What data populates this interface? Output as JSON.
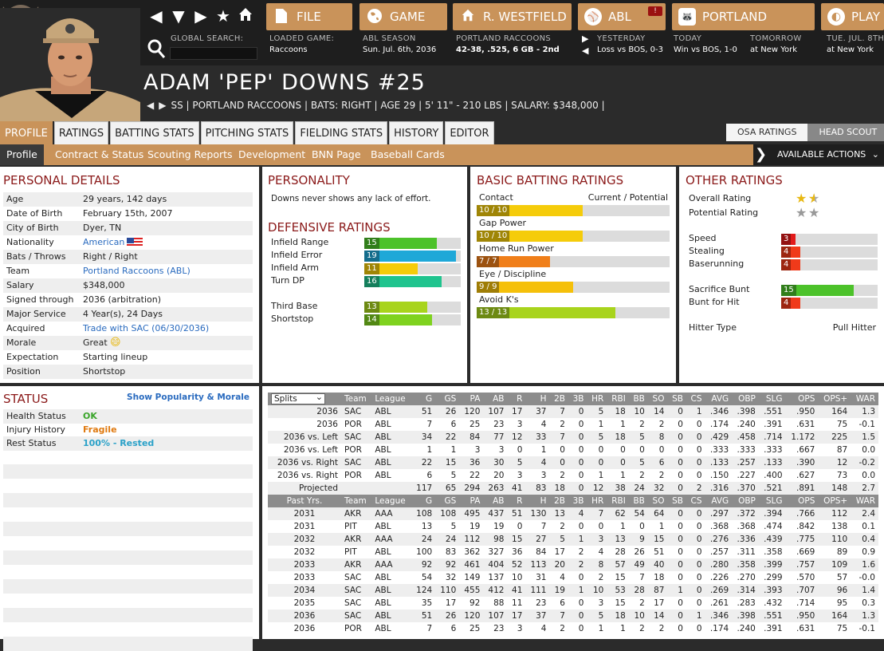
{
  "top": {
    "search_label": "GLOBAL SEARCH:",
    "buttons": {
      "file": "FILE",
      "game": "GAME",
      "team": "R. WESTFIELD",
      "league": "ABL",
      "portland": "PORTLAND",
      "play": "PLAY",
      "alert": "!"
    },
    "info": [
      {
        "label": "LOADED GAME:",
        "value": "Raccoons"
      },
      {
        "label": "ABL SEASON",
        "value": "Sun. Jul. 6th, 2036"
      },
      {
        "label": "PORTLAND RACCOONS",
        "value": "42-38, .525, 6 GB - 2nd"
      },
      {
        "label": "YESTERDAY",
        "value": "Loss vs BOS, 0-3"
      },
      {
        "label": "TODAY",
        "value": "Win vs BOS, 1-0"
      },
      {
        "label": "TOMORROW",
        "value": "at New York"
      },
      {
        "label": "TUE. JUL. 8TH",
        "value": "at New York"
      }
    ]
  },
  "player": {
    "name": "ADAM 'PEP' DOWNS  #25",
    "info": "SS | PORTLAND RACCOONS | BATS: RIGHT | AGE 29 | 5' 11\" - 210 LBS | SALARY: $348,000 |"
  },
  "tabs": [
    "PROFILE",
    "RATINGS",
    "BATTING STATS",
    "PITCHING STATS",
    "FIELDING STATS",
    "HISTORY",
    "EDITOR"
  ],
  "rating_toggle": [
    "OSA RATINGS",
    "HEAD SCOUT"
  ],
  "subtabs": [
    "Profile",
    "Contract & Status",
    "Scouting Reports",
    "Development",
    "BNN Page",
    "Baseball Cards"
  ],
  "actions_label": "AVAILABLE ACTIONS",
  "personal": {
    "title": "PERSONAL DETAILS",
    "rows": [
      {
        "k": "Age",
        "v": "29 years, 142 days"
      },
      {
        "k": "Date of Birth",
        "v": "February 15th, 2007"
      },
      {
        "k": "City of Birth",
        "v": "Dyer, TN"
      },
      {
        "k": "Nationality",
        "v": "American"
      },
      {
        "k": "Bats / Throws",
        "v": "Right / Right"
      },
      {
        "k": "Team",
        "v": "Portland Raccoons (ABL)"
      },
      {
        "k": "Salary",
        "v": "$348,000"
      },
      {
        "k": "Signed through",
        "v": "2036 (arbitration)"
      },
      {
        "k": "Major Service",
        "v": "4 Year(s), 24 Days"
      },
      {
        "k": "Acquired",
        "v": "Trade with SAC (06/30/2036)"
      },
      {
        "k": "Morale",
        "v": "Great"
      },
      {
        "k": "Expectation",
        "v": "Starting lineup"
      },
      {
        "k": "Position",
        "v": "Shortstop"
      }
    ]
  },
  "personality": {
    "title": "PERSONALITY",
    "text": "Downs never shows any lack of effort."
  },
  "defensive": {
    "title": "DEFENSIVE RATINGS",
    "items": [
      {
        "name": "Infield Range",
        "value": 15,
        "color": "#4cc22a"
      },
      {
        "name": "Infield Error",
        "value": 19,
        "color": "#1fa8d8"
      },
      {
        "name": "Infield Arm",
        "value": 11,
        "color": "#f5cc0a"
      },
      {
        "name": "Turn DP",
        "value": 16,
        "color": "#1fc48e"
      },
      {
        "name": "Third Base",
        "value": 13,
        "color": "#a8d41c"
      },
      {
        "name": "Shortstop",
        "value": 14,
        "color": "#7fd21f"
      }
    ]
  },
  "batting": {
    "title": "BASIC BATTING RATINGS",
    "col_header": "Current / Potential",
    "items": [
      {
        "name": "Contact",
        "value": "10 / 10",
        "fill": 0.55,
        "color": "#f5cc0a"
      },
      {
        "name": "Gap Power",
        "value": "10 / 10",
        "fill": 0.55,
        "color": "#f5cc0a"
      },
      {
        "name": "Home Run Power",
        "value": "7 / 7",
        "fill": 0.38,
        "color": "#f07f1a"
      },
      {
        "name": "Eye / Discipline",
        "value": "9 / 9",
        "fill": 0.5,
        "color": "#f5c00a"
      },
      {
        "name": "Avoid K's",
        "value": "13 / 13",
        "fill": 0.72,
        "color": "#a8d41c"
      }
    ]
  },
  "other": {
    "title": "OTHER RATINGS",
    "overall_label": "Overall Rating",
    "overall_stars": 1.5,
    "potential_label": "Potential Rating",
    "potential_stars": 2,
    "items": [
      {
        "name": "Speed",
        "value": 3,
        "color": "#e21b1b"
      },
      {
        "name": "Stealing",
        "value": 4,
        "color": "#f03a1a"
      },
      {
        "name": "Baserunning",
        "value": 4,
        "color": "#f03a1a"
      },
      {
        "name": "Sacrifice Bunt",
        "value": 15,
        "color": "#4cc22a"
      },
      {
        "name": "Bunt for Hit",
        "value": 4,
        "color": "#f03a1a"
      }
    ],
    "hitter_label": "Hitter Type",
    "hitter_value": "Pull Hitter"
  },
  "status": {
    "title": "STATUS",
    "link": "Show Popularity & Morale",
    "rows": [
      {
        "k": "Health Status",
        "v": "OK",
        "color": "#3aa52a"
      },
      {
        "k": "Injury History",
        "v": "Fragile",
        "color": "#e07a10"
      },
      {
        "k": "Rest Status",
        "v": "100% - Rested",
        "color": "#2aa1c8"
      }
    ]
  },
  "splits": {
    "select_value": "Splits",
    "headers": [
      "Team",
      "League",
      "G",
      "GS",
      "PA",
      "AB",
      "R",
      "H",
      "2B",
      "3B",
      "HR",
      "RBI",
      "BB",
      "SO",
      "SB",
      "CS",
      "AVG",
      "OBP",
      "SLG",
      "OPS",
      "OPS+",
      "WAR"
    ],
    "rows": [
      [
        "2036",
        "SAC",
        "ABL",
        "51",
        "26",
        "120",
        "107",
        "17",
        "37",
        "7",
        "0",
        "5",
        "18",
        "10",
        "14",
        "0",
        "1",
        ".346",
        ".398",
        ".551",
        ".950",
        "164",
        "1.3"
      ],
      [
        "2036",
        "POR",
        "ABL",
        "7",
        "6",
        "25",
        "23",
        "3",
        "4",
        "2",
        "0",
        "1",
        "1",
        "2",
        "2",
        "0",
        "0",
        ".174",
        ".240",
        ".391",
        ".631",
        "75",
        "-0.1"
      ],
      [
        "2036 vs. Left",
        "SAC",
        "ABL",
        "34",
        "22",
        "84",
        "77",
        "12",
        "33",
        "7",
        "0",
        "5",
        "18",
        "5",
        "8",
        "0",
        "0",
        ".429",
        ".458",
        ".714",
        "1.172",
        "225",
        "1.5"
      ],
      [
        "2036 vs. Left",
        "POR",
        "ABL",
        "1",
        "1",
        "3",
        "3",
        "0",
        "1",
        "0",
        "0",
        "0",
        "0",
        "0",
        "0",
        "0",
        "0",
        ".333",
        ".333",
        ".333",
        ".667",
        "87",
        "0.0"
      ],
      [
        "2036 vs. Right",
        "SAC",
        "ABL",
        "22",
        "15",
        "36",
        "30",
        "5",
        "4",
        "0",
        "0",
        "0",
        "0",
        "5",
        "6",
        "0",
        "0",
        ".133",
        ".257",
        ".133",
        ".390",
        "12",
        "-0.2"
      ],
      [
        "2036 vs. Right",
        "POR",
        "ABL",
        "6",
        "5",
        "22",
        "20",
        "3",
        "3",
        "2",
        "0",
        "1",
        "1",
        "2",
        "2",
        "0",
        "0",
        ".150",
        ".227",
        ".400",
        ".627",
        "73",
        "0.0"
      ],
      [
        "Projected",
        "",
        "",
        "117",
        "65",
        "294",
        "263",
        "41",
        "83",
        "18",
        "0",
        "12",
        "38",
        "24",
        "32",
        "0",
        "2",
        ".316",
        ".370",
        ".521",
        ".891",
        "148",
        "2.7"
      ]
    ],
    "past_label": "Past Yrs.",
    "past_rows": [
      [
        "2031",
        "AKR",
        "AAA",
        "108",
        "108",
        "495",
        "437",
        "51",
        "130",
        "13",
        "4",
        "7",
        "62",
        "54",
        "64",
        "0",
        "0",
        ".297",
        ".372",
        ".394",
        ".766",
        "112",
        "2.4"
      ],
      [
        "2031",
        "PIT",
        "ABL",
        "13",
        "5",
        "19",
        "19",
        "0",
        "7",
        "2",
        "0",
        "0",
        "1",
        "0",
        "1",
        "0",
        "0",
        ".368",
        ".368",
        ".474",
        ".842",
        "138",
        "0.1"
      ],
      [
        "2032",
        "AKR",
        "AAA",
        "24",
        "24",
        "112",
        "98",
        "15",
        "27",
        "5",
        "1",
        "3",
        "13",
        "9",
        "15",
        "0",
        "0",
        ".276",
        ".336",
        ".439",
        ".775",
        "110",
        "0.4"
      ],
      [
        "2032",
        "PIT",
        "ABL",
        "100",
        "83",
        "362",
        "327",
        "36",
        "84",
        "17",
        "2",
        "4",
        "28",
        "26",
        "51",
        "0",
        "0",
        ".257",
        ".311",
        ".358",
        ".669",
        "89",
        "0.9"
      ],
      [
        "2033",
        "AKR",
        "AAA",
        "92",
        "92",
        "461",
        "404",
        "52",
        "113",
        "20",
        "2",
        "8",
        "57",
        "49",
        "40",
        "0",
        "0",
        ".280",
        ".358",
        ".399",
        ".757",
        "109",
        "1.6"
      ],
      [
        "2033",
        "SAC",
        "ABL",
        "54",
        "32",
        "149",
        "137",
        "10",
        "31",
        "4",
        "0",
        "2",
        "15",
        "7",
        "18",
        "0",
        "0",
        ".226",
        ".270",
        ".299",
        ".570",
        "57",
        "-0.0"
      ],
      [
        "2034",
        "SAC",
        "ABL",
        "124",
        "110",
        "455",
        "412",
        "41",
        "111",
        "19",
        "1",
        "10",
        "53",
        "28",
        "87",
        "1",
        "0",
        ".269",
        ".314",
        ".393",
        ".707",
        "96",
        "1.4"
      ],
      [
        "2035",
        "SAC",
        "ABL",
        "35",
        "17",
        "92",
        "88",
        "11",
        "23",
        "6",
        "0",
        "3",
        "15",
        "2",
        "17",
        "0",
        "0",
        ".261",
        ".283",
        ".432",
        ".714",
        "95",
        "0.3"
      ],
      [
        "2036",
        "SAC",
        "ABL",
        "51",
        "26",
        "120",
        "107",
        "17",
        "37",
        "7",
        "0",
        "5",
        "18",
        "10",
        "14",
        "0",
        "1",
        ".346",
        ".398",
        ".551",
        ".950",
        "164",
        "1.3"
      ],
      [
        "2036",
        "POR",
        "ABL",
        "7",
        "6",
        "25",
        "23",
        "3",
        "4",
        "2",
        "0",
        "1",
        "1",
        "2",
        "2",
        "0",
        "0",
        ".174",
        ".240",
        ".391",
        ".631",
        "75",
        "-0.1"
      ]
    ]
  }
}
